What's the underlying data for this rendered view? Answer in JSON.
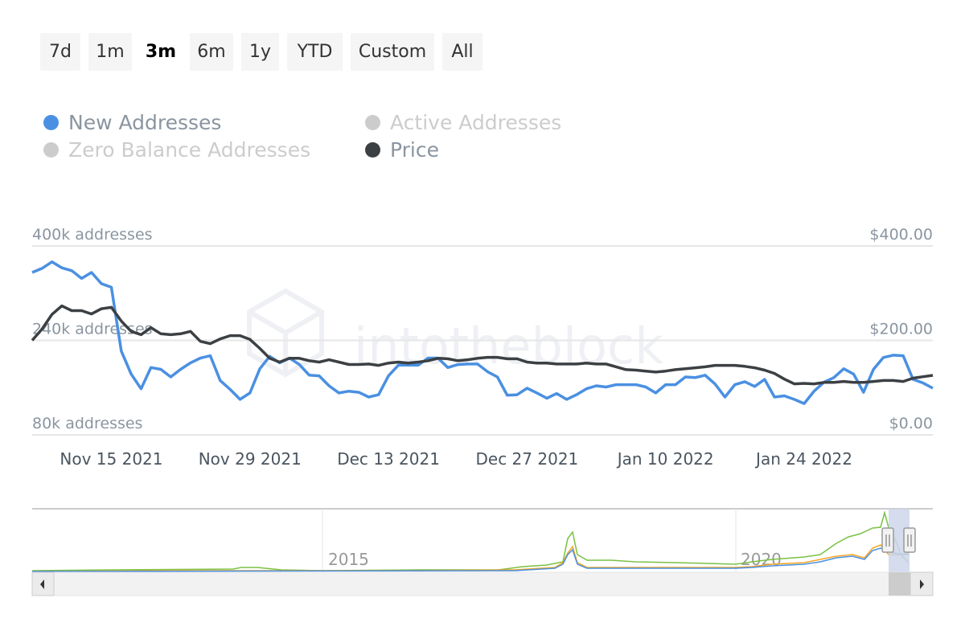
{
  "range_buttons": [
    "7d",
    "1m",
    "3m",
    "6m",
    "1y",
    "YTD",
    "Custom",
    "All"
  ],
  "selected_range": "3m",
  "legend": [
    {
      "name": "New Addresses",
      "color": "#4a90e2",
      "active": true
    },
    {
      "name": "Active Addresses",
      "color": "#7ac143",
      "active": false
    },
    {
      "name": "Zero Balance Addresses",
      "color": "#f5a623",
      "active": false
    },
    {
      "name": "Price",
      "color": "#3c4043",
      "active": true
    }
  ],
  "watermark": "intotheblock",
  "chart_data": {
    "type": "line",
    "title": "",
    "left_axis": {
      "ticks": [
        "80k addresses",
        "240k addresses",
        "400k addresses"
      ],
      "values": [
        80,
        240,
        400
      ],
      "unit": "k addresses"
    },
    "right_axis": {
      "ticks": [
        "$0.00",
        "$200.00",
        "$400.00"
      ],
      "values": [
        0,
        200,
        400
      ]
    },
    "x_ticks": [
      {
        "label": "Nov 15 2021",
        "date": "2021-11-15"
      },
      {
        "label": "Nov 29 2021",
        "date": "2021-11-29"
      },
      {
        "label": "Dec 13 2021",
        "date": "2021-12-13"
      },
      {
        "label": "Dec 27 2021",
        "date": "2021-12-27"
      },
      {
        "label": "Jan 10 2022",
        "date": "2022-01-10"
      },
      {
        "label": "Jan 24 2022",
        "date": "2022-01-24"
      }
    ],
    "grid": true,
    "legend_placement": "top-left",
    "x": [
      "2021-11-07",
      "2021-11-08",
      "2021-11-09",
      "2021-11-10",
      "2021-11-11",
      "2021-11-12",
      "2021-11-13",
      "2021-11-14",
      "2021-11-15",
      "2021-11-16",
      "2021-11-17",
      "2021-11-18",
      "2021-11-19",
      "2021-11-20",
      "2021-11-21",
      "2021-11-22",
      "2021-11-23",
      "2021-11-24",
      "2021-11-25",
      "2021-11-26",
      "2021-11-27",
      "2021-11-28",
      "2021-11-29",
      "2021-11-30",
      "2021-12-01",
      "2021-12-02",
      "2021-12-03",
      "2021-12-04",
      "2021-12-05",
      "2021-12-06",
      "2021-12-07",
      "2021-12-08",
      "2021-12-09",
      "2021-12-10",
      "2021-12-11",
      "2021-12-12",
      "2021-12-13",
      "2021-12-14",
      "2021-12-15",
      "2021-12-16",
      "2021-12-17",
      "2021-12-18",
      "2021-12-19",
      "2021-12-20",
      "2021-12-21",
      "2021-12-22",
      "2021-12-23",
      "2021-12-24",
      "2021-12-25",
      "2021-12-26",
      "2021-12-27",
      "2021-12-28",
      "2021-12-29",
      "2021-12-30",
      "2021-12-31",
      "2022-01-01",
      "2022-01-02",
      "2022-01-03",
      "2022-01-04",
      "2022-01-05",
      "2022-01-06",
      "2022-01-07",
      "2022-01-08",
      "2022-01-09",
      "2022-01-10",
      "2022-01-11",
      "2022-01-12",
      "2022-01-13",
      "2022-01-14",
      "2022-01-15",
      "2022-01-16",
      "2022-01-17",
      "2022-01-18",
      "2022-01-19",
      "2022-01-20",
      "2022-01-21",
      "2022-01-22",
      "2022-01-23",
      "2022-01-24",
      "2022-01-25",
      "2022-01-26",
      "2022-01-27",
      "2022-01-28",
      "2022-01-29",
      "2022-01-30",
      "2022-01-31",
      "2022-02-01",
      "2022-02-02",
      "2022-02-03",
      "2022-02-04",
      "2022-02-05",
      "2022-02-06"
    ],
    "series": [
      {
        "name": "New Addresses",
        "axis": "left",
        "color": "#4a90e2",
        "values": [
          355,
          362,
          373,
          363,
          358,
          345,
          355,
          336,
          330,
          222,
          183,
          158,
          194,
          191,
          178,
          191,
          202,
          210,
          214,
          172,
          157,
          140,
          151,
          192,
          213,
          202,
          210,
          199,
          181,
          180,
          163,
          151,
          154,
          152,
          144,
          148,
          180,
          198,
          198,
          198,
          210,
          210,
          194,
          199,
          200,
          200,
          187,
          178,
          147,
          148,
          159,
          151,
          142,
          150,
          140,
          148,
          158,
          163,
          161,
          165,
          165,
          165,
          161,
          151,
          165,
          165,
          178,
          177,
          181,
          166,
          144,
          165,
          170,
          162,
          174,
          144,
          146,
          140,
          133,
          154,
          169,
          177,
          192,
          183,
          152,
          191,
          211,
          215,
          214,
          174,
          168,
          159
        ]
      },
      {
        "name": "Price",
        "axis": "right",
        "color": "#3c4043",
        "values": [
          200,
          224,
          255,
          273,
          263,
          263,
          256,
          267,
          270,
          241,
          219,
          212,
          227,
          214,
          212,
          214,
          219,
          198,
          193,
          203,
          210,
          210,
          202,
          183,
          162,
          154,
          162,
          162,
          157,
          154,
          159,
          154,
          149,
          149,
          150,
          147,
          152,
          154,
          152,
          154,
          157,
          162,
          161,
          157,
          159,
          162,
          164,
          164,
          161,
          161,
          154,
          152,
          152,
          150,
          150,
          150,
          152,
          150,
          150,
          144,
          138,
          137,
          135,
          133,
          135,
          138,
          140,
          142,
          144,
          147,
          147,
          147,
          145,
          142,
          137,
          130,
          118,
          108,
          109,
          108,
          111,
          111,
          113,
          111,
          111,
          113,
          115,
          115,
          113,
          120,
          123,
          126
        ]
      }
    ],
    "navigator": {
      "year_labels": [
        "2015",
        "2020"
      ]
    }
  }
}
